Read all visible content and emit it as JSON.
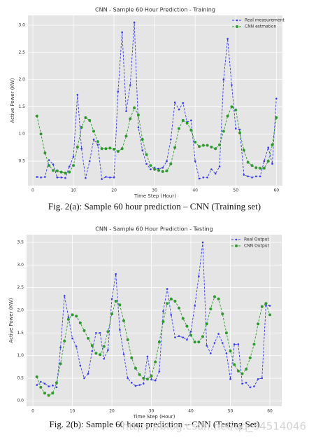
{
  "chart_data": [
    {
      "type": "line",
      "title": "CNN - Sample 60 Hour Prediction - Training",
      "x_label": "Time Step (Hour)",
      "y_label": "Active Power (KW)",
      "x": [
        1,
        2,
        3,
        4,
        5,
        6,
        7,
        8,
        9,
        10,
        11,
        12,
        13,
        14,
        15,
        16,
        17,
        18,
        19,
        20,
        21,
        22,
        23,
        24,
        25,
        26,
        27,
        28,
        29,
        30,
        31,
        32,
        33,
        34,
        35,
        36,
        37,
        38,
        39,
        40,
        41,
        42,
        43,
        44,
        45,
        46,
        47,
        48,
        49,
        50,
        51,
        52,
        53,
        54,
        55,
        56,
        57,
        58,
        59,
        60
      ],
      "series": [
        {
          "name": "Real measurement",
          "color": "#3a3aee",
          "values": [
            0.21,
            0.2,
            0.21,
            0.52,
            0.44,
            0.2,
            0.2,
            0.19,
            0.4,
            0.58,
            1.72,
            0.73,
            0.19,
            0.5,
            0.9,
            0.8,
            0.17,
            0.21,
            0.2,
            0.2,
            1.78,
            2.87,
            1.42,
            1.9,
            3.05,
            1.12,
            0.7,
            0.45,
            0.35,
            0.38,
            0.36,
            0.38,
            0.5,
            0.9,
            1.58,
            1.45,
            1.57,
            1.22,
            1.25,
            0.5,
            0.18,
            0.2,
            0.2,
            0.35,
            0.27,
            0.4,
            2.0,
            2.75,
            1.9,
            1.1,
            1.08,
            0.25,
            0.22,
            0.2,
            0.22,
            0.22,
            0.5,
            0.75,
            0.45,
            1.65
          ]
        },
        {
          "name": "CNN estmation",
          "color": "#2e9a2e",
          "values": [
            1.33,
            1.0,
            0.65,
            0.42,
            0.33,
            0.32,
            0.3,
            0.28,
            0.3,
            0.42,
            0.76,
            1.12,
            1.3,
            1.25,
            1.05,
            0.86,
            0.73,
            0.73,
            0.74,
            0.72,
            0.68,
            0.73,
            0.96,
            1.28,
            1.48,
            1.35,
            0.9,
            0.62,
            0.42,
            0.35,
            0.33,
            0.31,
            0.32,
            0.45,
            0.75,
            1.1,
            1.25,
            1.2,
            1.07,
            0.85,
            0.77,
            0.79,
            0.79,
            0.76,
            0.73,
            0.8,
            1.05,
            1.33,
            1.5,
            1.44,
            1.02,
            0.7,
            0.48,
            0.42,
            0.38,
            0.37,
            0.37,
            0.5,
            0.8,
            1.3
          ]
        }
      ],
      "xlim": [
        -1.2,
        61.5
      ],
      "xticks": [
        0,
        10,
        20,
        30,
        40,
        50,
        60
      ],
      "ylim": [
        0.05,
        3.18
      ],
      "yticks": [
        {
          "value": 0.5,
          "label": "0.5"
        },
        {
          "value": 1,
          "label": "1.0"
        },
        {
          "value": 1.5,
          "label": "1.5"
        },
        {
          "value": 2,
          "label": "2.0"
        },
        {
          "value": 2.5,
          "label": "2.5"
        },
        {
          "value": 3,
          "label": "3.0"
        }
      ],
      "grid": true,
      "legend": "upper right",
      "caption": "Fig. 2(a): Sample 60 hour prediction – CNN (Training set)"
    },
    {
      "type": "line",
      "title": "CNN - Sample 60 Hour Prediction - Testing",
      "x_label": "Time Step (Hour)",
      "y_label": "Active Power (KW)",
      "x": [
        1,
        2,
        3,
        4,
        5,
        6,
        7,
        8,
        9,
        10,
        11,
        12,
        13,
        14,
        15,
        16,
        17,
        18,
        19,
        20,
        21,
        22,
        23,
        24,
        25,
        26,
        27,
        28,
        29,
        30,
        31,
        32,
        33,
        34,
        35,
        36,
        37,
        38,
        39,
        40,
        41,
        42,
        43,
        44,
        45,
        46,
        47,
        48,
        49,
        50,
        51,
        52,
        53,
        54,
        55,
        56,
        57,
        58,
        59,
        60
      ],
      "series": [
        {
          "name": "Real Output",
          "color": "#3a3aee",
          "values": [
            0.35,
            0.42,
            0.38,
            0.32,
            0.34,
            0.3,
            1.18,
            2.32,
            1.85,
            1.38,
            1.2,
            0.78,
            0.5,
            0.6,
            1.1,
            1.5,
            1.5,
            0.93,
            1.12,
            2.25,
            2.8,
            1.57,
            1.03,
            0.5,
            0.4,
            0.33,
            0.35,
            0.38,
            0.98,
            0.47,
            0.45,
            0.65,
            1.98,
            2.47,
            1.9,
            1.4,
            1.43,
            1.4,
            1.35,
            1.53,
            2.1,
            2.75,
            3.5,
            1.22,
            1.05,
            1.28,
            1.48,
            1.28,
            1.05,
            0.48,
            1.25,
            1.25,
            0.38,
            0.4,
            0.3,
            0.32,
            0.48,
            0.5,
            2.1,
            2.1
          ]
        },
        {
          "name": "CNN Output",
          "color": "#2e9a2e",
          "values": [
            0.53,
            0.3,
            0.17,
            0.12,
            0.17,
            0.4,
            0.82,
            1.32,
            1.8,
            1.9,
            1.87,
            1.72,
            1.55,
            1.38,
            1.22,
            1.05,
            1.02,
            1.2,
            1.53,
            1.92,
            2.2,
            2.12,
            1.77,
            1.35,
            0.95,
            0.72,
            0.58,
            0.5,
            0.48,
            0.55,
            0.86,
            1.3,
            1.75,
            2.15,
            2.25,
            2.2,
            2.05,
            1.82,
            1.65,
            1.45,
            1.3,
            1.3,
            1.42,
            1.7,
            2.03,
            2.3,
            2.25,
            1.92,
            1.5,
            1.1,
            0.8,
            0.66,
            0.6,
            0.7,
            0.95,
            1.25,
            1.7,
            2.08,
            2.15,
            1.9
          ]
        }
      ],
      "xlim": [
        -1.6,
        63
      ],
      "xticks": [
        0,
        10,
        20,
        30,
        40,
        50,
        60
      ],
      "ylim": [
        -0.12,
        3.67
      ],
      "yticks": [
        {
          "value": 0,
          "label": "0.0"
        },
        {
          "value": 0.5,
          "label": "0.5"
        },
        {
          "value": 1,
          "label": "1.0"
        },
        {
          "value": 1.5,
          "label": "1.5"
        },
        {
          "value": 2,
          "label": "2.0"
        },
        {
          "value": 2.5,
          "label": "2.5"
        },
        {
          "value": 3,
          "label": "3.0"
        },
        {
          "value": 3.5,
          "label": "3.5"
        }
      ],
      "grid": true,
      "legend": "upper right",
      "caption": "Fig. 2(b): Sample 60 hour prediction – CNN (Testing Set)",
      "watermark": "https://blog.csdn.net/qq_34514046"
    }
  ]
}
